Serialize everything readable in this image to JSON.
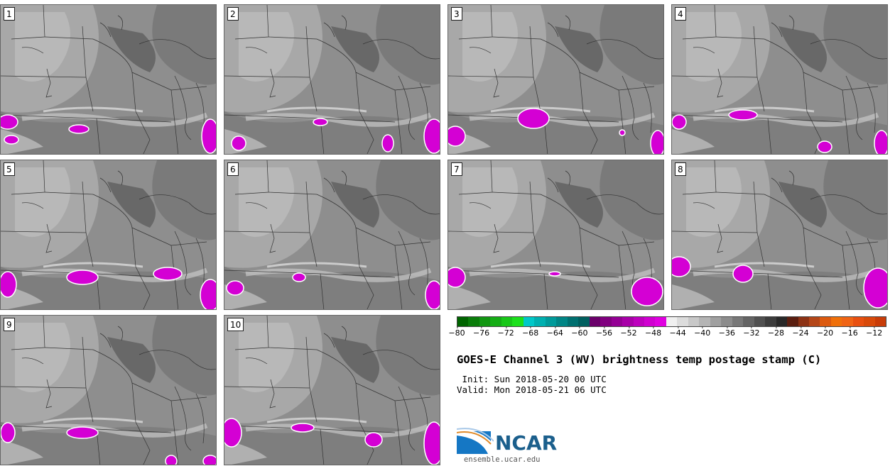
{
  "panels": [
    {
      "label": "1"
    },
    {
      "label": "2"
    },
    {
      "label": "3"
    },
    {
      "label": "4"
    },
    {
      "label": "5"
    },
    {
      "label": "6"
    },
    {
      "label": "7"
    },
    {
      "label": "8"
    },
    {
      "label": "9"
    },
    {
      "label": "10"
    }
  ],
  "colorbar": {
    "colors": [
      "#006400",
      "#0a7d0a",
      "#119611",
      "#15ad15",
      "#18c718",
      "#1ce01c",
      "#00c8c8",
      "#00b0b0",
      "#009a9a",
      "#008585",
      "#007070",
      "#005f5f",
      "#6a006a",
      "#80007f",
      "#940094",
      "#a800a8",
      "#bd00bd",
      "#d000d0",
      "#e000e0",
      "#f0f0f0",
      "#dcdcdc",
      "#c8c8c8",
      "#b4b4b4",
      "#a0a0a0",
      "#8c8c8c",
      "#787878",
      "#646464",
      "#505050",
      "#3c3c3c",
      "#282828",
      "#5a1e10",
      "#8c3214",
      "#b44618",
      "#dc5a0f",
      "#f0700a",
      "#f06414",
      "#e85010",
      "#d84a0a",
      "#c83c08"
    ],
    "tick_labels": [
      "−80",
      "−76",
      "−72",
      "−68",
      "−64",
      "−60",
      "−56",
      "−52",
      "−48",
      "−44",
      "−40",
      "−36",
      "−32",
      "−28",
      "−24",
      "−20",
      "−16",
      "−12"
    ],
    "range": [
      -80,
      -10
    ]
  },
  "title": "GOES-E Channel 3 (WV) brightness temp postage stamp (C)",
  "init_line": " Init: Sun 2018-05-20 00 UTC",
  "valid_line": "Valid: Mon 2018-05-21 06 UTC",
  "logo": {
    "text": "NCAR",
    "url": "ensemble.ucar.edu",
    "color": "#1b5f8c"
  }
}
